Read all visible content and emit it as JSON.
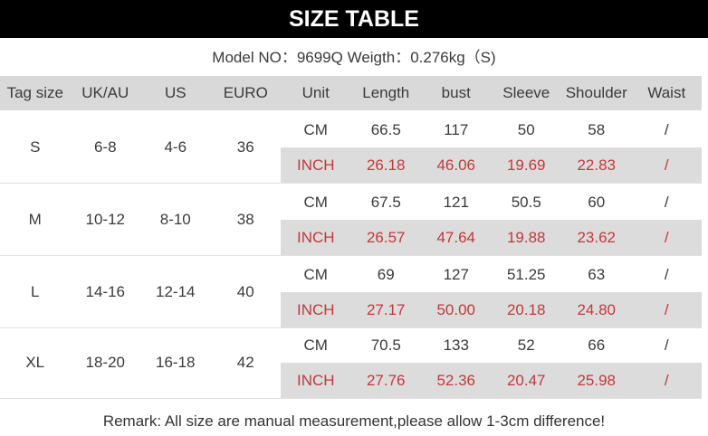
{
  "title": "SIZE TABLE",
  "model_line": "Model NO：9699Q Weigth：0.276kg（S)",
  "headers": [
    "Tag size",
    "UK/AU",
    "US",
    "EURO",
    "Unit",
    "Length",
    "bust",
    "Sleeve",
    "Shoulder",
    "Waist"
  ],
  "rows": [
    {
      "tag": "S",
      "uk": "6-8",
      "us": "4-6",
      "euro": "36",
      "cm": [
        "CM",
        "66.5",
        "117",
        "50",
        "58",
        "/"
      ],
      "inch": [
        "INCH",
        "26.18",
        "46.06",
        "19.69",
        "22.83",
        "/"
      ]
    },
    {
      "tag": "M",
      "uk": "10-12",
      "us": "8-10",
      "euro": "38",
      "cm": [
        "CM",
        "67.5",
        "121",
        "50.5",
        "60",
        "/"
      ],
      "inch": [
        "INCH",
        "26.57",
        "47.64",
        "19.88",
        "23.62",
        "/"
      ]
    },
    {
      "tag": "L",
      "uk": "14-16",
      "us": "12-14",
      "euro": "40",
      "cm": [
        "CM",
        "69",
        "127",
        "51.25",
        "63",
        "/"
      ],
      "inch": [
        "INCH",
        "27.17",
        "50.00",
        "20.18",
        "24.80",
        "/"
      ]
    },
    {
      "tag": "XL",
      "uk": "18-20",
      "us": "16-18",
      "euro": "42",
      "cm": [
        "CM",
        "70.5",
        "133",
        "52",
        "66",
        "/"
      ],
      "inch": [
        "INCH",
        "27.76",
        "52.36",
        "20.47",
        "25.98",
        "/"
      ]
    }
  ],
  "remark": "Remark: All size are manual measurement,please allow 1-3cm difference!",
  "colors": {
    "header_bar": "#000000",
    "inch_text": "#c0393b",
    "inch_bg": "#dcdcdc",
    "header_row_bg": "#d9d9d9"
  }
}
